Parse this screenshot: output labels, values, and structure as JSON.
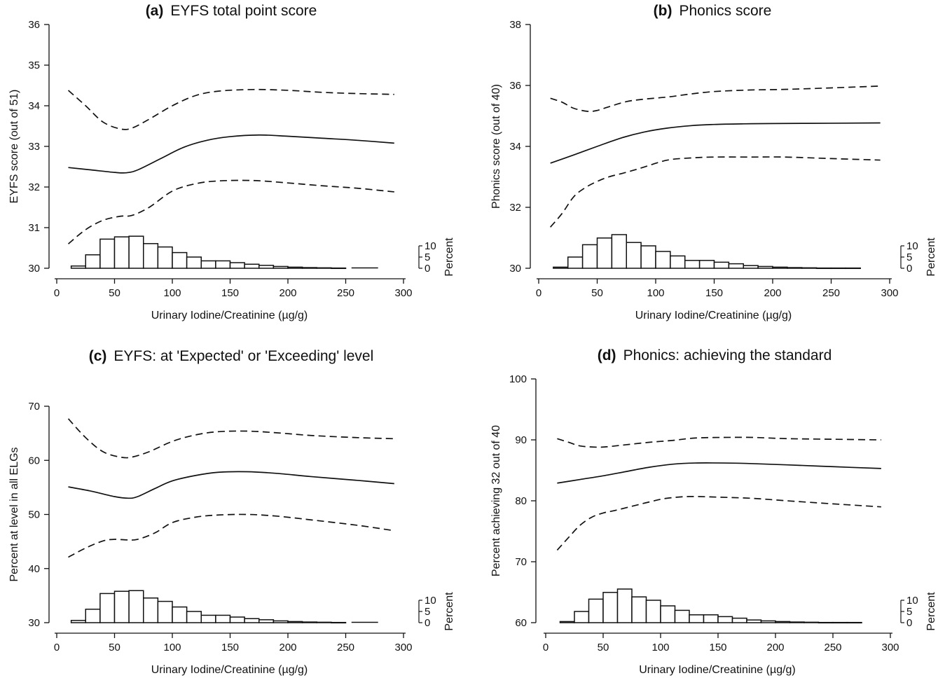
{
  "colors": {
    "line": "#111111",
    "background": "#ffffff",
    "bar_fill": "#ffffff"
  },
  "chart_data": [
    {
      "type": "line",
      "letter": "(a)",
      "title": "EYFS total point score",
      "xlabel": "Urinary Iodine/Creatinine (µg/g)",
      "ylabel": "EYFS score (out of 51)",
      "hist_label": "Percent",
      "xlim": [
        0,
        300
      ],
      "ylim": [
        30,
        36
      ],
      "xticks": [
        "0",
        "50",
        "100",
        "150",
        "200",
        "250",
        "300"
      ],
      "yticks": [
        "30",
        "31",
        "32",
        "33",
        "34",
        "35",
        "36"
      ],
      "hist_ticks": [
        "10",
        "5",
        "0"
      ],
      "grid": false,
      "series": [
        {
          "style": "solid",
          "x": [
            10,
            30,
            50,
            60,
            70,
            90,
            110,
            130,
            150,
            175,
            200,
            230,
            260,
            292
          ],
          "y": [
            32.48,
            32.42,
            32.36,
            32.35,
            32.42,
            32.7,
            32.98,
            33.15,
            33.24,
            33.28,
            33.25,
            33.2,
            33.15,
            33.08
          ]
        },
        {
          "style": "dashed",
          "x": [
            10,
            25,
            40,
            55,
            65,
            80,
            100,
            120,
            140,
            170,
            200,
            230,
            260,
            292
          ],
          "y": [
            34.38,
            34.0,
            33.6,
            33.43,
            33.45,
            33.67,
            34.0,
            34.25,
            34.36,
            34.4,
            34.38,
            34.33,
            34.3,
            34.28
          ]
        },
        {
          "style": "dashed",
          "x": [
            10,
            25,
            40,
            55,
            65,
            80,
            100,
            120,
            140,
            170,
            200,
            230,
            260,
            292
          ],
          "y": [
            30.6,
            30.95,
            31.18,
            31.28,
            31.3,
            31.5,
            31.9,
            32.08,
            32.15,
            32.16,
            32.1,
            32.03,
            31.97,
            31.88
          ]
        }
      ],
      "histogram": {
        "bin_width": 12.5,
        "bin_centers": [
          18.75,
          31.25,
          43.75,
          56.25,
          68.75,
          81.25,
          93.75,
          106.25,
          118.75,
          131.25,
          143.75,
          156.25,
          168.75,
          181.25,
          193.75,
          206.25,
          218.75,
          231.25,
          243.75
        ],
        "percent": [
          1,
          6,
          13,
          14,
          14.3,
          11,
          9.5,
          7,
          5,
          3.3,
          3.3,
          2.5,
          1.8,
          1.3,
          0.8,
          0.5,
          0.3,
          0.2,
          0.1
        ],
        "extra_segment_x": [
          255,
          278
        ]
      }
    },
    {
      "type": "line",
      "letter": "(b)",
      "title": "Phonics score",
      "xlabel": "Urinary Iodine/Creatinine (µg/g)",
      "ylabel": "Phonics score (out of 40)",
      "hist_label": "Percent",
      "xlim": [
        0,
        300
      ],
      "ylim": [
        30,
        38
      ],
      "xticks": [
        "0",
        "50",
        "100",
        "150",
        "200",
        "250",
        "300"
      ],
      "yticks": [
        "30",
        "32",
        "34",
        "36",
        "38"
      ],
      "hist_ticks": [
        "10",
        "5",
        "0"
      ],
      "grid": false,
      "series": [
        {
          "style": "solid",
          "x": [
            10,
            30,
            50,
            70,
            90,
            110,
            130,
            150,
            175,
            200,
            250,
            292
          ],
          "y": [
            33.45,
            33.72,
            34.0,
            34.27,
            34.47,
            34.6,
            34.68,
            34.72,
            34.74,
            34.75,
            34.76,
            34.77
          ]
        },
        {
          "style": "dashed",
          "x": [
            10,
            20,
            30,
            42,
            50,
            60,
            75,
            90,
            110,
            130,
            150,
            180,
            210,
            250,
            292
          ],
          "y": [
            35.58,
            35.45,
            35.25,
            35.15,
            35.18,
            35.3,
            35.47,
            35.55,
            35.62,
            35.72,
            35.8,
            35.85,
            35.87,
            35.92,
            35.98
          ]
        },
        {
          "style": "dashed",
          "x": [
            10,
            20,
            30,
            40,
            50,
            60,
            75,
            90,
            110,
            130,
            150,
            180,
            210,
            250,
            292
          ],
          "y": [
            31.35,
            31.8,
            32.35,
            32.65,
            32.85,
            33.0,
            33.15,
            33.32,
            33.55,
            33.62,
            33.65,
            33.65,
            33.65,
            33.6,
            33.55
          ]
        }
      ],
      "histogram": {
        "bin_width": 12.5,
        "bin_centers": [
          18.75,
          31.25,
          43.75,
          56.25,
          68.75,
          81.25,
          93.75,
          106.25,
          118.75,
          131.25,
          143.75,
          156.25,
          168.75,
          181.25,
          193.75,
          206.25,
          218.75,
          231.25,
          243.75,
          256.25,
          268.75
        ],
        "percent": [
          0.5,
          5,
          10.5,
          13.5,
          15,
          11.5,
          10,
          7.5,
          5.5,
          3.5,
          3.5,
          2.7,
          2,
          1.2,
          0.8,
          0.5,
          0.3,
          0.2,
          0.1,
          0.1,
          0.1
        ],
        "extra_segment_x": []
      }
    },
    {
      "type": "line",
      "letter": "(c)",
      "title": "EYFS: at 'Expected' or 'Exceeding' level",
      "xlabel": "Urinary Iodine/Creatinine (µg/g)",
      "ylabel": "Percent at level in all ELGs",
      "hist_label": "Percent",
      "xlim": [
        0,
        300
      ],
      "ylim": [
        30,
        70
      ],
      "xticks": [
        "0",
        "50",
        "100",
        "150",
        "200",
        "250",
        "300"
      ],
      "yticks": [
        "30",
        "40",
        "50",
        "60",
        "70"
      ],
      "hist_ticks": [
        "10",
        "5",
        "0"
      ],
      "grid": false,
      "series": [
        {
          "style": "solid",
          "x": [
            10,
            30,
            50,
            62,
            70,
            85,
            100,
            120,
            140,
            165,
            190,
            220,
            260,
            292
          ],
          "y": [
            55.1,
            54.3,
            53.3,
            53.0,
            53.3,
            54.8,
            56.2,
            57.2,
            57.8,
            57.9,
            57.6,
            57.0,
            56.3,
            55.7
          ]
        },
        {
          "style": "dashed",
          "x": [
            10,
            25,
            40,
            55,
            65,
            80,
            100,
            120,
            140,
            165,
            190,
            220,
            260,
            292
          ],
          "y": [
            67.7,
            64.2,
            61.6,
            60.6,
            60.6,
            61.6,
            63.5,
            64.7,
            65.3,
            65.4,
            65.1,
            64.6,
            64.2,
            64.0
          ]
        },
        {
          "style": "dashed",
          "x": [
            10,
            25,
            40,
            50,
            60,
            70,
            85,
            100,
            120,
            140,
            165,
            190,
            220,
            260,
            292
          ],
          "y": [
            42.1,
            43.8,
            45.1,
            45.4,
            45.3,
            45.4,
            46.6,
            48.5,
            49.5,
            49.9,
            50.0,
            49.7,
            49.0,
            48.0,
            47.0
          ]
        }
      ],
      "histogram": {
        "bin_width": 12.5,
        "bin_centers": [
          18.75,
          31.25,
          43.75,
          56.25,
          68.75,
          81.25,
          93.75,
          106.25,
          118.75,
          131.25,
          143.75,
          156.25,
          168.75,
          181.25,
          193.75,
          206.25,
          218.75,
          231.25,
          243.75
        ],
        "percent": [
          1,
          6,
          13,
          14,
          14.3,
          11,
          9.5,
          7,
          5,
          3.3,
          3.3,
          2.5,
          1.8,
          1.3,
          0.8,
          0.5,
          0.3,
          0.2,
          0.1
        ],
        "extra_segment_x": [
          255,
          278
        ]
      }
    },
    {
      "type": "line",
      "letter": "(d)",
      "title": "Phonics: achieving the standard",
      "xlabel": "Urinary Iodine/Creatinine (µg/g)",
      "ylabel": "Percent achieving 32 out of 40",
      "hist_label": "Percent",
      "xlim": [
        0,
        300
      ],
      "ylim": [
        60,
        100
      ],
      "xticks": [
        "0",
        "50",
        "100",
        "150",
        "200",
        "250",
        "300"
      ],
      "yticks": [
        "60",
        "70",
        "80",
        "90",
        "100"
      ],
      "hist_ticks": [
        "10",
        "5",
        "0"
      ],
      "grid": false,
      "series": [
        {
          "style": "solid",
          "x": [
            10,
            30,
            50,
            70,
            90,
            110,
            130,
            155,
            180,
            210,
            250,
            292
          ],
          "y": [
            82.9,
            83.5,
            84.1,
            84.8,
            85.5,
            86.0,
            86.2,
            86.2,
            86.1,
            85.9,
            85.6,
            85.3
          ]
        },
        {
          "style": "dashed",
          "x": [
            10,
            20,
            30,
            45,
            55,
            70,
            90,
            110,
            130,
            155,
            180,
            210,
            250,
            292
          ],
          "y": [
            90.2,
            89.6,
            89.0,
            88.8,
            88.9,
            89.2,
            89.6,
            89.9,
            90.3,
            90.4,
            90.4,
            90.2,
            90.1,
            90.0
          ]
        },
        {
          "style": "dashed",
          "x": [
            10,
            20,
            30,
            40,
            50,
            60,
            75,
            90,
            105,
            125,
            150,
            180,
            210,
            250,
            292
          ],
          "y": [
            71.9,
            74.0,
            76.0,
            77.3,
            78.0,
            78.4,
            79.1,
            79.8,
            80.4,
            80.7,
            80.6,
            80.4,
            80.0,
            79.5,
            79.0
          ]
        }
      ],
      "histogram": {
        "bin_width": 12.5,
        "bin_centers": [
          18.75,
          31.25,
          43.75,
          56.25,
          68.75,
          81.25,
          93.75,
          106.25,
          118.75,
          131.25,
          143.75,
          156.25,
          168.75,
          181.25,
          193.75,
          206.25,
          218.75,
          231.25,
          243.75,
          256.25,
          268.75
        ],
        "percent": [
          0.5,
          5,
          10.5,
          13.5,
          15,
          11.5,
          10,
          7.5,
          5.5,
          3.5,
          3.5,
          2.7,
          2,
          1.2,
          0.8,
          0.5,
          0.3,
          0.2,
          0.1,
          0.1,
          0.1
        ],
        "extra_segment_x": []
      }
    }
  ]
}
